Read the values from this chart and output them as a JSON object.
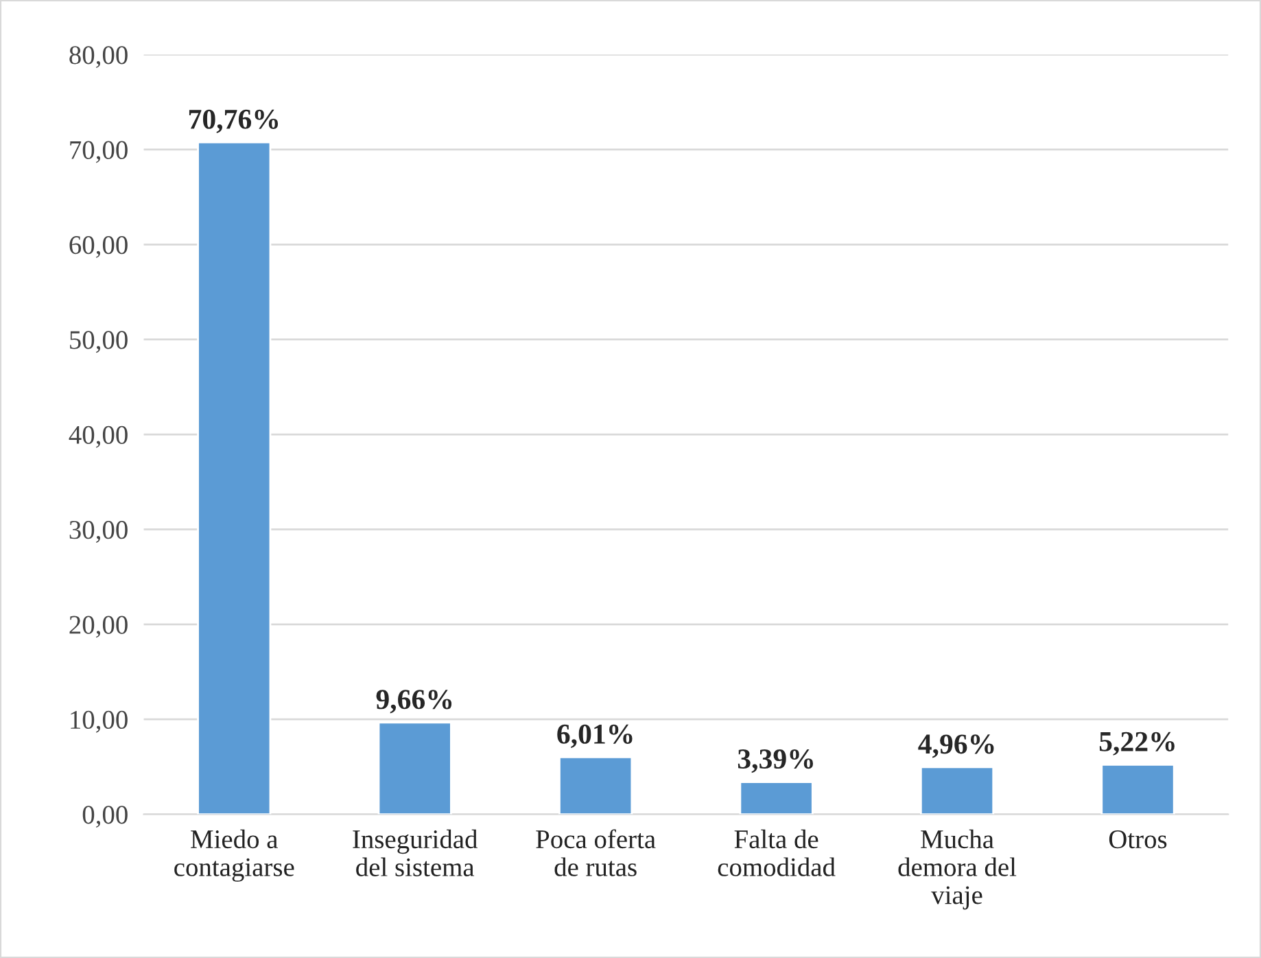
{
  "chart_data": {
    "type": "bar",
    "categories": [
      "Miedo a\ncontagiarse",
      "Inseguridad\ndel sistema",
      "Poca oferta\nde rutas",
      "Falta de\ncomodidad",
      "Mucha\ndemora del\nviaje",
      "Otros"
    ],
    "values": [
      70.76,
      9.66,
      6.01,
      3.39,
      4.96,
      5.22
    ],
    "value_labels": [
      "70,76%",
      "9,66%",
      "6,01%",
      "3,39%",
      "4,96%",
      "5,22%"
    ],
    "color": "#5b9bd5",
    "ylim": [
      0,
      80
    ],
    "yticks": [
      {
        "value": 0,
        "label": "0,00"
      },
      {
        "value": 10,
        "label": "10,00"
      },
      {
        "value": 20,
        "label": "20,00"
      },
      {
        "value": 30,
        "label": "30,00"
      },
      {
        "value": 40,
        "label": "40,00"
      },
      {
        "value": 50,
        "label": "50,00"
      },
      {
        "value": 60,
        "label": "60,00"
      },
      {
        "value": 70,
        "label": "70,00"
      },
      {
        "value": 80,
        "label": "80,00"
      }
    ],
    "grid": "y",
    "legend": false
  }
}
